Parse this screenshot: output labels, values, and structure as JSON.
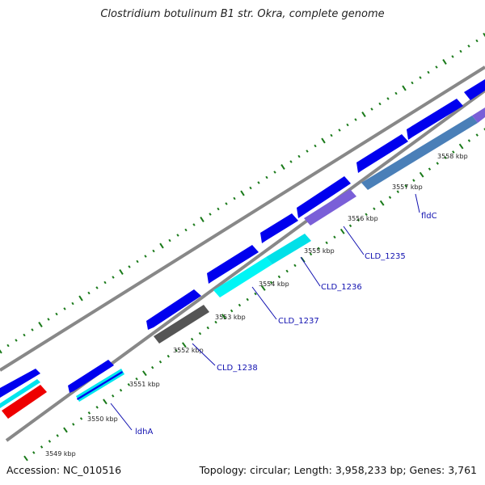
{
  "title": "Clostridium botulinum B1 str. Okra, complete genome",
  "accession": "Accession: NC_010516",
  "summary": "Topology: circular; Length: 3,958,233 bp; Genes: 3,761",
  "colors": {
    "backbone": "#8a8a8a",
    "dots": "#1a7a1a",
    "gene_forward": "#0000ee",
    "label": "#1010b0",
    "ldhA": "#00e5ee",
    "CLD_1238": "#555555",
    "CLD_1237": "#00f5f5",
    "CLD_1236": "#00e0e8",
    "CLD_1235": "#7a5fd8",
    "fldC": "#4a7fb8",
    "left_gene": "#ee0000"
  },
  "kbp_ticks": [
    "3549 kbp",
    "3550 kbp",
    "3551 kbp",
    "3552 kbp",
    "3553 kbp",
    "3554 kbp",
    "3555 kbp",
    "3556 kbp",
    "3557 kbp",
    "3558 kbp"
  ],
  "gene_labels": [
    "ldhA",
    "CLD_1238",
    "CLD_1237",
    "CLD_1236",
    "CLD_1235",
    "fldC"
  ]
}
